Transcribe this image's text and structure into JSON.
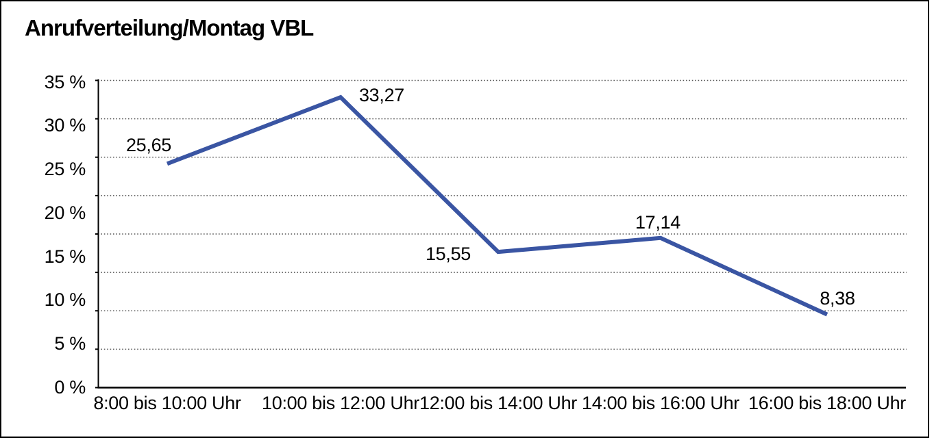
{
  "window": {
    "title": "Anrufverteilung/Montag VBL"
  },
  "chart_data": {
    "type": "line",
    "title": "Anrufverteilung/Montag VBL",
    "categories": [
      "8:00 bis 10:00 Uhr",
      "10:00 bis 12:00 Uhr",
      "12:00 bis 14:00 Uhr",
      "14:00 bis 16:00 Uhr",
      "16:00 bis 18:00 Uhr"
    ],
    "values": [
      25.65,
      33.27,
      15.55,
      17.14,
      8.38
    ],
    "point_labels": [
      "25,65",
      "33,27",
      "15,55",
      "17,14",
      "8,38"
    ],
    "yticks": [
      "35 %",
      "30 %",
      "25 %",
      "20 %",
      "15 %",
      "10 %",
      "5 %",
      "0 %"
    ],
    "ytick_values": [
      35,
      30,
      25,
      20,
      15,
      10,
      5,
      0
    ],
    "ylim": [
      0,
      35
    ],
    "xlabel": "",
    "ylabel": "",
    "unit": "%",
    "legend": "none",
    "grid": "horizontal-dotted",
    "colors": {
      "line": "#3A55A3",
      "axis": "#000000",
      "grid": "#555555",
      "text": "#000000",
      "background": "#ffffff",
      "frame_border": "#000000"
    }
  }
}
